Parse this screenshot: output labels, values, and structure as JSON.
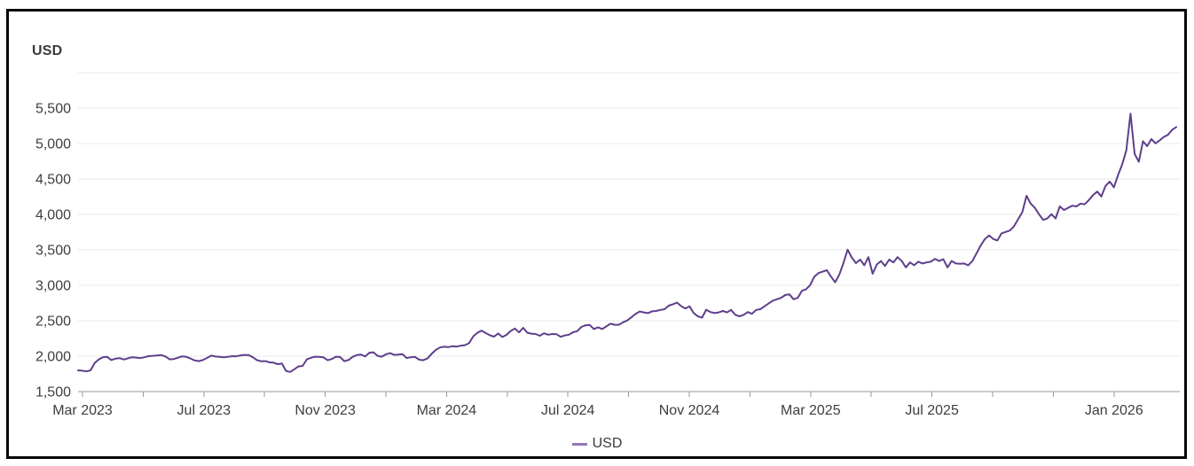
{
  "page": {
    "background": "#ffffff",
    "frame_border_color": "#060606"
  },
  "chart": {
    "unit_label": "USD",
    "legend": {
      "items": [
        {
          "label": "USD",
          "swatch_color": "#9577b6"
        }
      ]
    }
  },
  "chart_data": {
    "type": "line",
    "title": "",
    "unit": "USD",
    "xlabel": "",
    "ylabel": "USD",
    "x_start": "2023-03-01",
    "x_end": "2026-03-01",
    "x_total_months": 36,
    "x_tick_month_step": 2,
    "x_tick_last_month": 34,
    "x_labels": [
      {
        "label": "Mar 2023",
        "month": 0
      },
      {
        "label": "Jul 2023",
        "month": 4
      },
      {
        "label": "Nov 2023",
        "month": 8
      },
      {
        "label": "Mar 2024",
        "month": 12
      },
      {
        "label": "Jul 2024",
        "month": 16
      },
      {
        "label": "Nov 2024",
        "month": 20
      },
      {
        "label": "Mar 2025",
        "month": 24
      },
      {
        "label": "Jul 2025",
        "month": 28
      },
      {
        "label": "Jan 2026",
        "month": 34
      }
    ],
    "ylim": [
      1500,
      6000
    ],
    "y_tick_step": 500,
    "y_max_labeled": 5500,
    "grid": true,
    "legend_position": "bottom",
    "colors": {
      "grid": "#e8e8e8",
      "axis": "#999999",
      "tick": "#999999",
      "text": "#3e3e3e"
    },
    "series": [
      {
        "name": "USD",
        "color": "#5f3e8c",
        "sampling": "evenly spaced, ~4 days per point, Mar 2023 to late Feb 2026",
        "values": [
          1800,
          1795,
          1785,
          1800,
          1905,
          1955,
          1985,
          1990,
          1945,
          1965,
          1972,
          1952,
          1970,
          1985,
          1980,
          1972,
          1985,
          2000,
          2005,
          2010,
          2015,
          1995,
          1955,
          1960,
          1978,
          1998,
          1990,
          1968,
          1940,
          1930,
          1945,
          1975,
          2008,
          1995,
          1990,
          1985,
          1990,
          2000,
          1998,
          2010,
          2018,
          2015,
          1985,
          1945,
          1928,
          1930,
          1912,
          1908,
          1888,
          1895,
          1790,
          1778,
          1815,
          1855,
          1862,
          1955,
          1978,
          1992,
          1990,
          1982,
          1942,
          1960,
          1992,
          1988,
          1930,
          1945,
          1990,
          2015,
          2022,
          1995,
          2048,
          2055,
          2005,
          1992,
          2025,
          2042,
          2018,
          2022,
          2028,
          1972,
          1985,
          1990,
          1950,
          1942,
          1968,
          2032,
          2088,
          2122,
          2132,
          2128,
          2140,
          2135,
          2148,
          2155,
          2182,
          2280,
          2330,
          2360,
          2325,
          2295,
          2275,
          2320,
          2270,
          2300,
          2355,
          2390,
          2335,
          2400,
          2330,
          2318,
          2312,
          2288,
          2322,
          2302,
          2312,
          2310,
          2272,
          2292,
          2302,
          2338,
          2352,
          2412,
          2435,
          2440,
          2382,
          2408,
          2382,
          2420,
          2458,
          2442,
          2442,
          2478,
          2502,
          2548,
          2595,
          2630,
          2618,
          2608,
          2632,
          2638,
          2652,
          2662,
          2712,
          2732,
          2755,
          2705,
          2672,
          2702,
          2608,
          2562,
          2542,
          2655,
          2622,
          2608,
          2618,
          2638,
          2618,
          2652,
          2582,
          2562,
          2582,
          2622,
          2598,
          2652,
          2662,
          2702,
          2742,
          2782,
          2802,
          2822,
          2862,
          2872,
          2802,
          2822,
          2922,
          2942,
          3002,
          3122,
          3172,
          3192,
          3212,
          3122,
          3042,
          3152,
          3312,
          3502,
          3392,
          3312,
          3362,
          3282,
          3398,
          3162,
          3292,
          3342,
          3272,
          3362,
          3322,
          3398,
          3342,
          3252,
          3322,
          3282,
          3332,
          3308,
          3322,
          3332,
          3372,
          3342,
          3368,
          3252,
          3342,
          3308,
          3302,
          3308,
          3282,
          3342,
          3452,
          3562,
          3652,
          3702,
          3652,
          3632,
          3732,
          3752,
          3772,
          3832,
          3932,
          4032,
          4262,
          4152,
          4092,
          4002,
          3922,
          3942,
          4002,
          3942,
          4112,
          4062,
          4092,
          4122,
          4112,
          4152,
          4142,
          4202,
          4272,
          4322,
          4252,
          4402,
          4462,
          4382,
          4552,
          4702,
          4902,
          5422,
          4852,
          4742,
          5032,
          4962,
          5062,
          5002,
          5042,
          5092,
          5122,
          5192,
          5232
        ]
      }
    ]
  }
}
